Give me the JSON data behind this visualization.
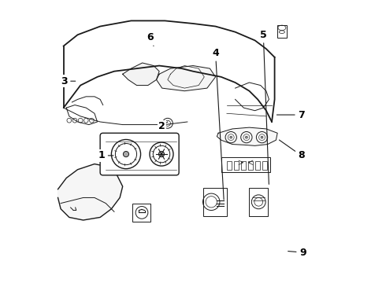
{
  "title": "",
  "bg_color": "#ffffff",
  "line_color": "#1a1a1a",
  "label_color": "#000000",
  "font_size": 9,
  "dpi": 100,
  "fig_w": 4.9,
  "fig_h": 3.6
}
